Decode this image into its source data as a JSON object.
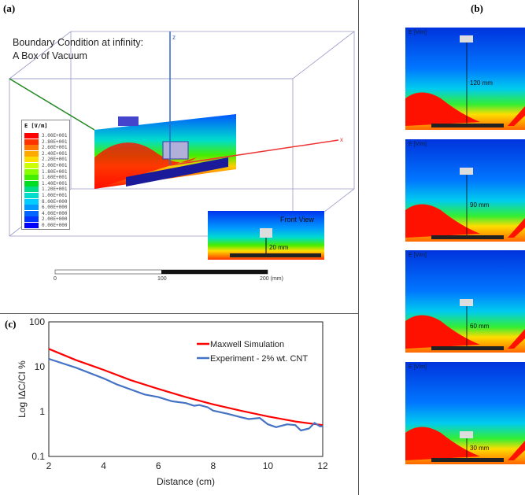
{
  "panels": {
    "a": "(a)",
    "b": "(b)",
    "c": "(c)"
  },
  "panel_a": {
    "boundary_line1": "Boundary Condition at infinity:",
    "boundary_line2": "A Box of Vacuum",
    "legend_title": "E [V/m]",
    "legend_values": [
      "3.00E+001",
      "2.80E+001",
      "2.60E+001",
      "2.40E+001",
      "2.20E+001",
      "2.00E+001",
      "1.80E+001",
      "1.60E+001",
      "1.40E+001",
      "1.20E+001",
      "1.00E+001",
      "8.00E+000",
      "6.00E+000",
      "4.00E+000",
      "2.00E+000",
      "0.00E+000"
    ],
    "legend_colors": [
      "#ff0000",
      "#ff3300",
      "#ff7700",
      "#ffaa00",
      "#ffdd00",
      "#ccff00",
      "#88ff00",
      "#44ee00",
      "#00dd22",
      "#00dd88",
      "#00ddcc",
      "#00ccff",
      "#0099ff",
      "#0066ff",
      "#0033ff",
      "#0000ff"
    ],
    "axis_x": "x",
    "axis_z": "z",
    "front_view": "Front View",
    "front_distance": "20 mm",
    "scale_ticks": [
      "0",
      "100",
      "200 (mm)"
    ]
  },
  "panel_b": {
    "label": "E [V/m]",
    "distances": [
      "120 mm",
      "90 mm",
      "60 mm",
      "30 mm"
    ]
  },
  "chart_data": {
    "type": "line",
    "title": "",
    "xlabel": "Distance (cm)",
    "ylabel": "Log IΔC/CI %",
    "xlim": [
      2,
      12
    ],
    "ylim": [
      0.1,
      100
    ],
    "yscale": "log",
    "xticks": [
      "2",
      "4",
      "6",
      "8",
      "10",
      "12"
    ],
    "yticks": [
      "0.1",
      "1",
      "10",
      "100"
    ],
    "legend_position": "top-right",
    "series": [
      {
        "name": "Maxwell Simulation",
        "color": "#ff0000",
        "x": [
          2,
          3,
          4,
          5,
          6,
          7,
          8,
          9,
          10,
          11,
          12
        ],
        "y": [
          25,
          14,
          8.5,
          5,
          3.2,
          2.1,
          1.45,
          1.05,
          0.78,
          0.6,
          0.5
        ]
      },
      {
        "name": "Experiment - 2% wt. CNT",
        "color": "#4472c4",
        "x": [
          2,
          3,
          4,
          4.5,
          5,
          5.5,
          6,
          6.5,
          7,
          7.3,
          7.5,
          7.8,
          8,
          8.5,
          9,
          9.3,
          9.7,
          10,
          10.3,
          10.7,
          11,
          11.2,
          11.5,
          11.7,
          11.9,
          12
        ],
        "y": [
          15,
          9.5,
          5.5,
          4,
          3.1,
          2.4,
          2.1,
          1.7,
          1.55,
          1.35,
          1.4,
          1.25,
          1.05,
          0.9,
          0.75,
          0.68,
          0.72,
          0.52,
          0.45,
          0.52,
          0.5,
          0.38,
          0.42,
          0.56,
          0.47,
          0.47
        ]
      }
    ]
  }
}
